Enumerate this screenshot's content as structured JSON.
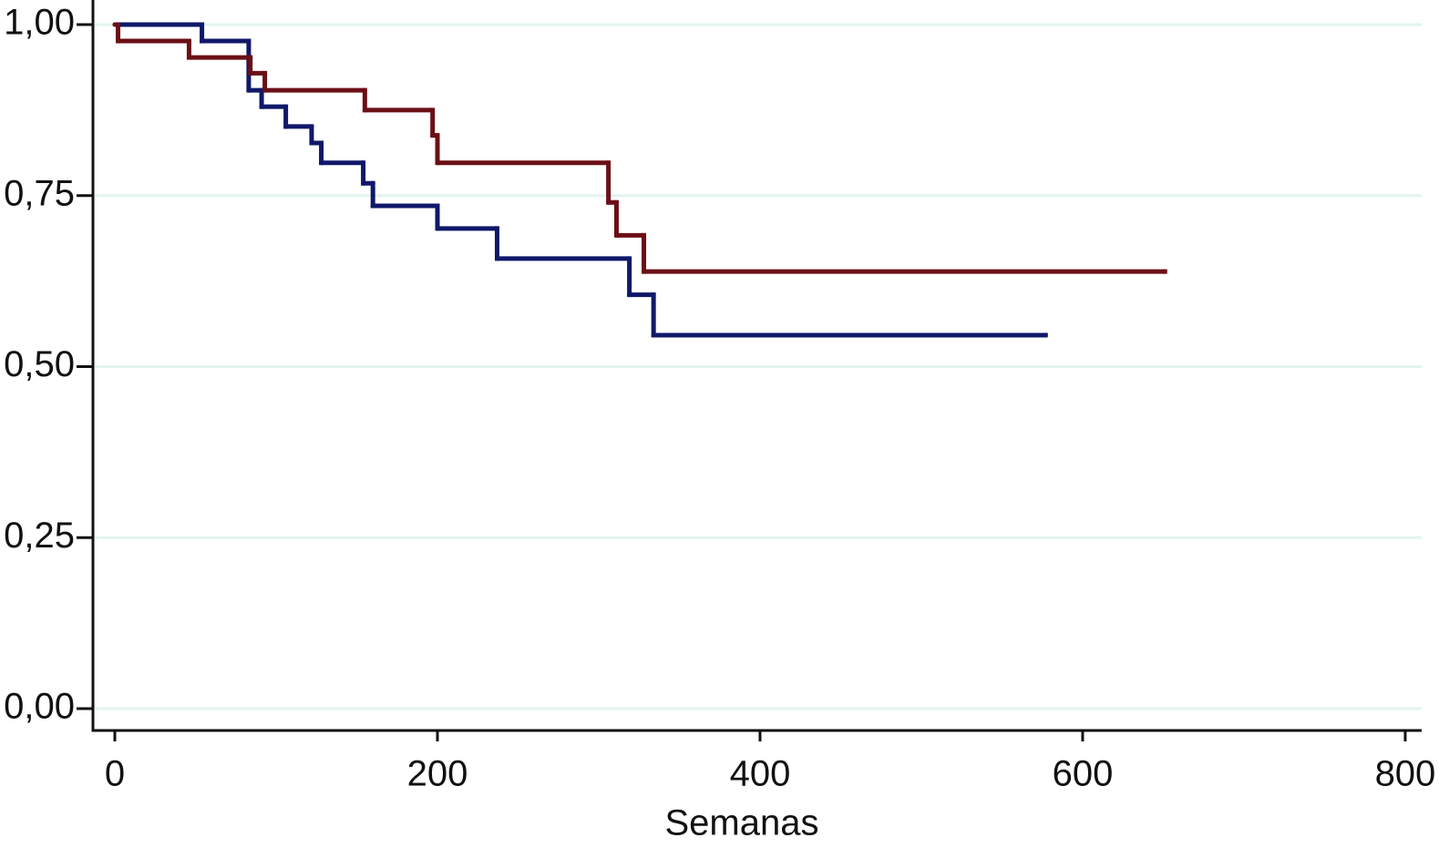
{
  "chart_data": {
    "type": "step",
    "xlabel": "Semanas",
    "xlim": [
      -13.56,
      810.2
    ],
    "xticks": [
      0,
      200,
      400,
      600,
      800
    ],
    "ylim": [
      -0.032,
      1.036
    ],
    "yticks": [
      {
        "value": 0,
        "label": "0,00"
      },
      {
        "value": 0.25,
        "label": "0,25"
      },
      {
        "value": 0.5,
        "label": "0,50"
      },
      {
        "value": 0.75,
        "label": "0,75"
      },
      {
        "value": 1,
        "label": "1,00"
      }
    ],
    "grid": true,
    "series": [
      {
        "color": "#10186a",
        "x": [
          0,
          54,
          83,
          91,
          106,
          122,
          128,
          154,
          160,
          200,
          237,
          319,
          334,
          577
        ],
        "values": [
          1.0,
          0.976,
          0.904,
          0.88,
          0.851,
          0.827,
          0.798,
          0.768,
          0.735,
          0.702,
          0.658,
          0.605,
          0.546,
          0.546
        ]
      },
      {
        "color": "#6b0f16",
        "x": [
          0,
          2,
          46,
          84,
          93,
          155,
          197,
          200,
          306,
          311,
          328,
          651
        ],
        "values": [
          1.0,
          0.976,
          0.952,
          0.929,
          0.904,
          0.875,
          0.838,
          0.798,
          0.74,
          0.692,
          0.639,
          0.639
        ]
      }
    ]
  }
}
